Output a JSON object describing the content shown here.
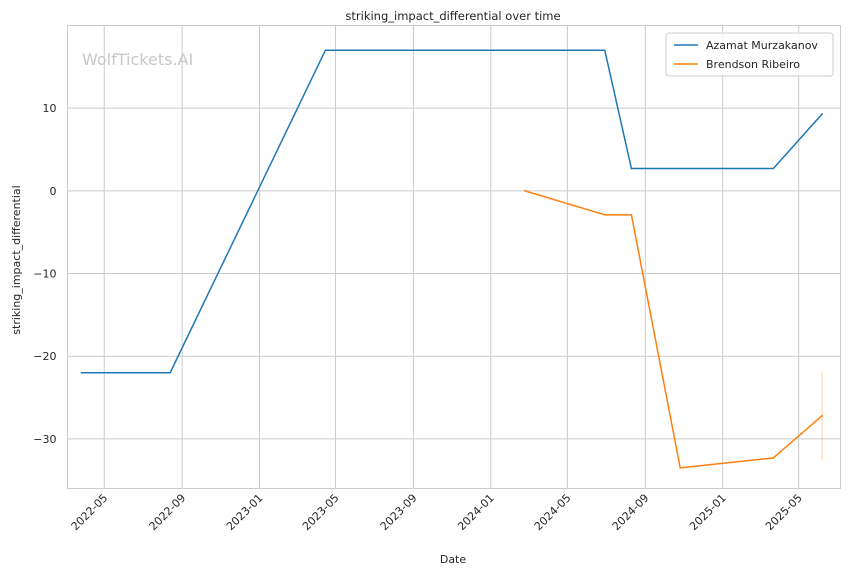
{
  "watermark": "WolfTickets.AI",
  "chart_data": {
    "type": "line",
    "title": "striking_impact_differential over time",
    "xlabel": "Date",
    "ylabel": "striking_impact_differential",
    "xlim": [
      "2022-03-04",
      "2025-07-06"
    ],
    "ylim": [
      -36,
      20
    ],
    "x_ticks": [
      "2022-05",
      "2022-09",
      "2023-01",
      "2023-05",
      "2023-09",
      "2024-01",
      "2024-05",
      "2024-09",
      "2025-01",
      "2025-05"
    ],
    "y_ticks": [
      10,
      0,
      -10,
      -20,
      -30
    ],
    "y_tick_labels": [
      "10",
      "0",
      "−10",
      "−20",
      "−30"
    ],
    "grid": true,
    "legend_position": "top-right",
    "series": [
      {
        "name": "Azamat Murzakanov",
        "color": "#1f77b4",
        "x": [
          "2022-03-26",
          "2022-08-13",
          "2023-04-15",
          "2024-06-29",
          "2024-08-10",
          "2025-03-22",
          "2025-06-07"
        ],
        "y": [
          -22,
          -22,
          17,
          17,
          2.7,
          2.7,
          9.3
        ]
      },
      {
        "name": "Brendson Ribeiro",
        "color": "#ff7f0e",
        "x": [
          "2024-02-24",
          "2024-06-29",
          "2024-08-10",
          "2024-10-26",
          "2025-03-22",
          "2025-06-07"
        ],
        "y": [
          0,
          -2.9,
          -2.9,
          -33.5,
          -32.3,
          -27.2
        ],
        "error_bar": {
          "x": "2025-06-07",
          "low": -32.5,
          "high": -22
        }
      }
    ]
  }
}
